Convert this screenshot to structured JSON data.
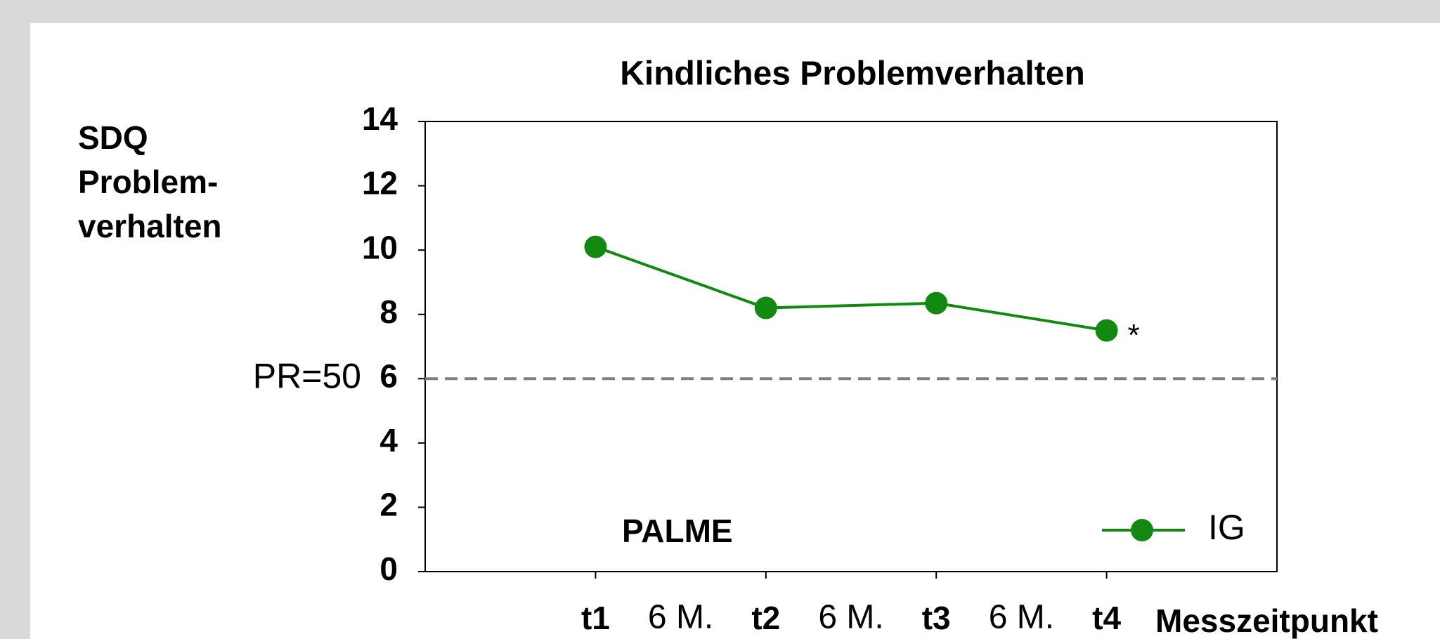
{
  "chart_data": {
    "type": "line",
    "title": "Kindliches Problemverhalten",
    "y_label": [
      "SDQ",
      "Problem-",
      "verhalten"
    ],
    "x_label": "Messzeitpunkt",
    "categories": [
      "t1",
      "t2",
      "t3",
      "t4"
    ],
    "interval_labels": [
      "6 M.",
      "6 M.",
      "6 M."
    ],
    "series": [
      {
        "name": "IG",
        "color": "#128a12",
        "values": [
          10.1,
          8.2,
          8.35,
          7.5
        ]
      }
    ],
    "ylim": [
      0,
      14
    ],
    "yticks": [
      0,
      2,
      4,
      6,
      8,
      10,
      12,
      14
    ],
    "reference_line": {
      "value": 6,
      "label": "PR=50",
      "color": "#808080"
    },
    "annotations": [
      {
        "text": "*"
      }
    ],
    "panel_label": "PALME",
    "legend": "lower right"
  }
}
